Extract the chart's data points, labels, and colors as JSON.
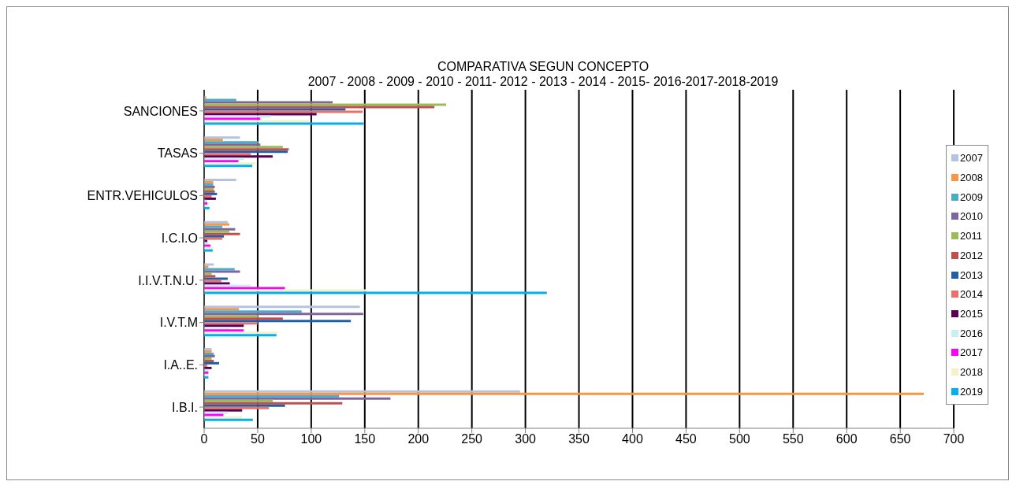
{
  "chart_data": {
    "type": "bar",
    "orientation": "horizontal",
    "title": "COMPARATIVA SEGUN CONCEPTO",
    "subtitle": "2007 - 2008 - 2009 - 2010 - 2011- 2012 - 2013 - 2014 - 2015- 2016-2017-2018-2019",
    "categories": [
      "SANCIONES",
      "TASAS",
      "ENTR.VEHICULOS",
      "I.C.I.O",
      "I.I.V.T.N.U.",
      "I.V.T.M",
      "I.A..E.",
      "I.B.I."
    ],
    "series": [
      {
        "name": "2007",
        "color": "#b4c3e0",
        "values": [
          null,
          33.5,
          30,
          22,
          9,
          145.5,
          7,
          295
        ]
      },
      {
        "name": "2008",
        "color": "#f79646",
        "values": [
          2,
          17.5,
          8.5,
          23.5,
          4,
          32.5,
          7,
          672
        ]
      },
      {
        "name": "2009",
        "color": "#4bacc6",
        "values": [
          30,
          50.5,
          8.5,
          17,
          28.5,
          91,
          9,
          126
        ]
      },
      {
        "name": "2010",
        "color": "#8064a2",
        "values": [
          120,
          52.5,
          10,
          29,
          33.5,
          148.5,
          10,
          174
        ]
      },
      {
        "name": "2011",
        "color": "#9bbb59",
        "values": [
          226,
          73.5,
          9,
          23.5,
          7,
          50.5,
          7,
          64
        ]
      },
      {
        "name": "2012",
        "color": "#c0504d",
        "values": [
          215,
          79,
          10,
          33.5,
          10.5,
          73.5,
          9,
          129
        ]
      },
      {
        "name": "2013",
        "color": "#1f5fa8",
        "values": [
          132,
          78,
          12,
          18.5,
          22,
          137,
          14,
          75.5
        ]
      },
      {
        "name": "2014",
        "color": "#e9716b",
        "values": [
          148,
          43.5,
          7,
          17,
          16,
          50,
          3,
          60.5
        ]
      },
      {
        "name": "2015",
        "color": "#5a0050",
        "values": [
          105,
          64,
          11,
          3,
          24,
          37,
          7,
          35.5
        ]
      },
      {
        "name": "2016",
        "color": "#c8f0f0",
        "values": [
          62.5,
          37.5,
          3,
          4,
          43.5,
          24,
          4,
          22
        ]
      },
      {
        "name": "2017",
        "color": "#ff00ff",
        "values": [
          52.5,
          32,
          3,
          6,
          75.5,
          37,
          4,
          18
        ]
      },
      {
        "name": "2018",
        "color": "#f5f0c8",
        "values": [
          98,
          48,
          2,
          8,
          152,
          68.5,
          4,
          35.5
        ]
      },
      {
        "name": "2019",
        "color": "#00b0f0",
        "values": [
          149,
          45,
          5,
          8,
          320,
          67.5,
          4,
          45.5
        ]
      }
    ],
    "xlim": [
      0,
      700
    ],
    "xticks": [
      0,
      50,
      100,
      150,
      200,
      250,
      300,
      350,
      400,
      450,
      500,
      550,
      600,
      650,
      700
    ],
    "grid": "x",
    "legend": "right"
  }
}
